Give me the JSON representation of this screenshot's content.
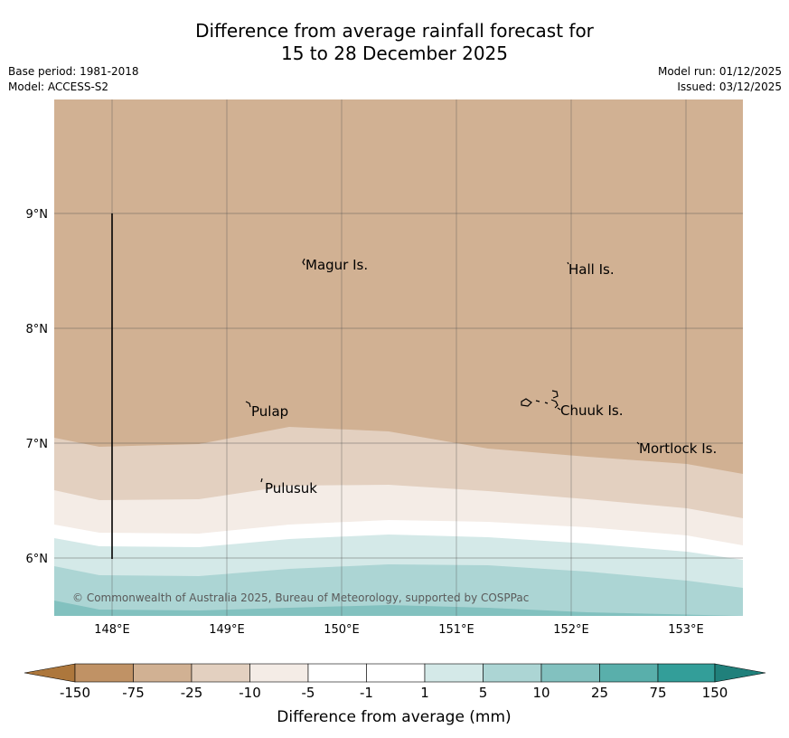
{
  "header": {
    "title_line1": "Difference from average rainfall forecast for",
    "title_line2": "15 to 28 December 2025"
  },
  "meta": {
    "base_period": "Base period: 1981-2018",
    "model": "Model: ACCESS-S2",
    "model_run": "Model run: 01/12/2025",
    "issued": "Issued: 03/12/2025"
  },
  "map": {
    "lon_labels": [
      "148°E",
      "149°E",
      "150°E",
      "151°E",
      "152°E",
      "153°E"
    ],
    "lat_labels": [
      "9°N",
      "8°N",
      "7°N",
      "6°N"
    ],
    "places": [
      "Magur Is.",
      "Hall Is.",
      "Pulap",
      "Chuuk Is.",
      "Mortlock Is.",
      "Pulusuk"
    ],
    "copyright": "© Commonwealth of Australia 2025, Bureau of Meteorology, supported by COSPPac"
  },
  "legend": {
    "title": "Difference from average (mm)",
    "ticks": [
      "-150",
      "-75",
      "-25",
      "-10",
      "-5",
      "-1",
      "1",
      "5",
      "10",
      "25",
      "75",
      "150"
    ],
    "colors": [
      "#ad773c",
      "#c09265",
      "#d1b193",
      "#e3d0c0",
      "#f4ece6",
      "#ffffff",
      "#d4e9e8",
      "#acd5d4",
      "#82c1bf",
      "#59afab",
      "#339e99",
      "#20807b"
    ]
  }
}
